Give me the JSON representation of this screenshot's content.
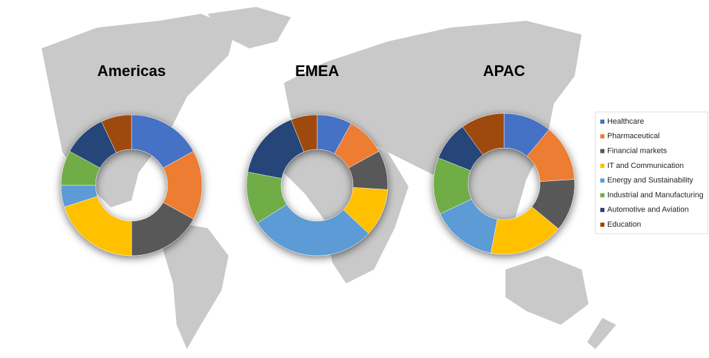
{
  "chart_data": {
    "type": "donut",
    "categories": [
      "Healthcare",
      "Pharmaceutical",
      "Financial markets",
      "IT and Communication",
      "Energy and Sustainability",
      "Industrial and Manufacturing",
      "Automotive and Aviation",
      "Education"
    ],
    "colors": [
      "#4472c4",
      "#ed7d31",
      "#595959",
      "#ffc000",
      "#5b9bd5",
      "#70ad47",
      "#264478",
      "#9e480e"
    ],
    "series": [
      {
        "name": "Americas",
        "values": [
          17,
          16,
          17,
          20,
          5,
          8,
          10,
          7
        ]
      },
      {
        "name": "EMEA",
        "values": [
          8,
          9,
          9,
          11,
          29,
          12,
          16,
          6
        ]
      },
      {
        "name": "APAC",
        "values": [
          11,
          13,
          12,
          17,
          15,
          13,
          9,
          10
        ]
      }
    ],
    "legend": "right"
  }
}
